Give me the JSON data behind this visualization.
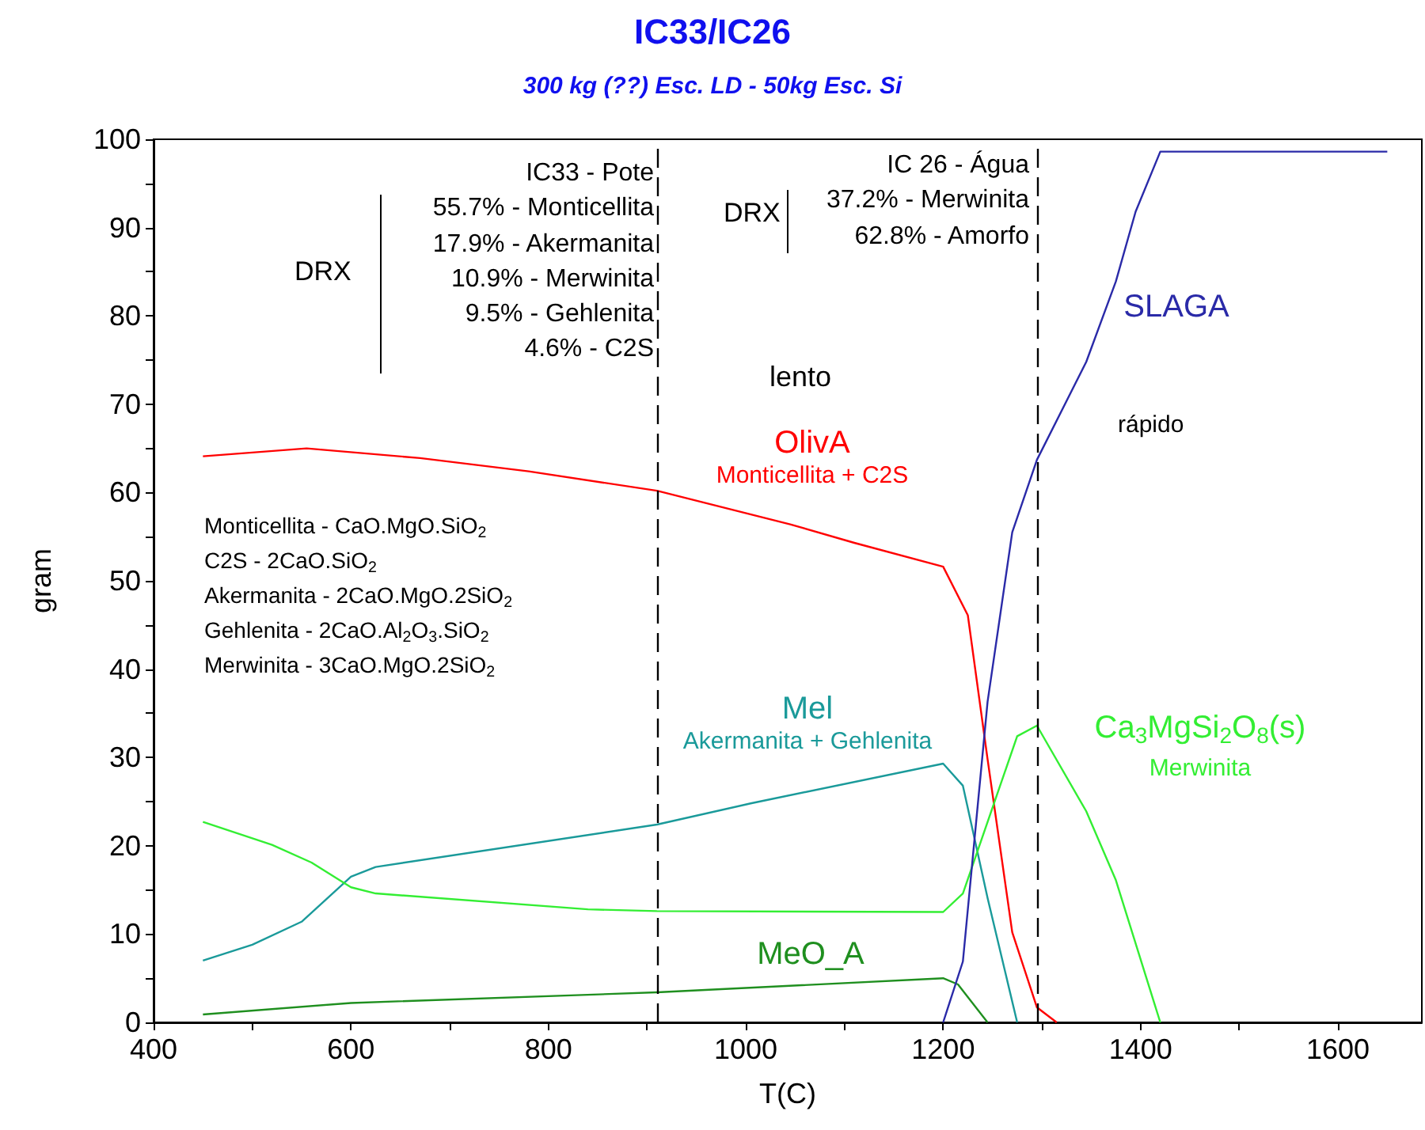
{
  "chart_data": {
    "type": "line",
    "title": "IC33/IC26",
    "subtitle": "300 kg (??) Esc. LD - 50kg Esc. Si",
    "xlabel": "T(C)",
    "ylabel": "gram",
    "xlim": [
      400,
      1685
    ],
    "xticks": [
      400,
      {
        "value": 500,
        "label": null
      },
      600,
      {
        "value": 700,
        "label": null
      },
      800,
      {
        "value": 900,
        "label": null
      },
      1000,
      {
        "value": 1100,
        "label": null
      },
      1200,
      {
        "value": 1300,
        "label": null
      },
      1400,
      {
        "value": 1500,
        "label": null
      },
      1600
    ],
    "ylim": [
      0,
      100
    ],
    "yticks": [
      0,
      {
        "value": 5,
        "label": null
      },
      10,
      {
        "value": 15,
        "label": null
      },
      20,
      {
        "value": 25,
        "label": null
      },
      30,
      {
        "value": 35,
        "label": null
      },
      40,
      {
        "value": 45,
        "label": null
      },
      50,
      {
        "value": 55,
        "label": null
      },
      60,
      {
        "value": 65,
        "label": null
      },
      70,
      {
        "value": 75,
        "label": null
      },
      80,
      {
        "value": 85,
        "label": null
      },
      90,
      {
        "value": 95,
        "label": null
      },
      100
    ],
    "grid": false,
    "legend": false,
    "marker": "none",
    "line_style": "solid",
    "series": [
      {
        "name": "OlivA\nMonticellita + C2S",
        "color": "#ff0000",
        "x": [
          450,
          555,
          670,
          780,
          910,
          1045,
          1110,
          1200,
          1225,
          1245,
          1270,
          1295,
          1315
        ],
        "values": [
          64.1,
          65.0,
          63.9,
          62.4,
          60.2,
          56.4,
          54.3,
          51.6,
          46.1,
          29.8,
          10.2,
          1.7,
          0
        ]
      },
      {
        "name": "Mel\nAkermanita + Gehlenita",
        "color": "#1a9a9a",
        "x": [
          450,
          500,
          550,
          600,
          625,
          910,
          1005,
          1200,
          1220,
          1245,
          1275
        ],
        "values": [
          7.0,
          8.8,
          11.4,
          16.5,
          17.6,
          22.4,
          24.8,
          29.3,
          26.8,
          14.1,
          0
        ]
      },
      {
        "name": "Ca$_{3}$MgSi$_{2}$O$_{8}$(s)\nMerwinita",
        "color": "#33ee33",
        "x": [
          450,
          520,
          560,
          600,
          625,
          840,
          910,
          1200,
          1220,
          1275,
          1295,
          1345,
          1375,
          1420
        ],
        "values": [
          22.7,
          20.1,
          18.1,
          15.3,
          14.6,
          12.8,
          12.6,
          12.5,
          14.6,
          32.4,
          33.6,
          23.9,
          16.1,
          0
        ]
      },
      {
        "name": "MeO_A",
        "color": "#1f8f1f",
        "x": [
          450,
          600,
          910,
          1200,
          1215,
          1245
        ],
        "values": [
          0.9,
          2.2,
          3.4,
          5.0,
          4.3,
          0
        ]
      },
      {
        "name": "SLAGA",
        "color": "#2a2aa8",
        "x": [
          1200,
          1220,
          1245,
          1270,
          1295,
          1345,
          1375,
          1395,
          1420,
          1650
        ],
        "values": [
          0,
          6.9,
          36.3,
          55.5,
          63.7,
          74.8,
          83.9,
          91.8,
          98.6,
          98.6
        ]
      }
    ],
    "ref_lines": [
      {
        "axis": "x",
        "value": 910,
        "label": null,
        "color": "#000000",
        "line_style": "dashed"
      },
      {
        "axis": "x",
        "value": 1295,
        "label": null,
        "color": "#000000",
        "line_style": "dashed"
      }
    ],
    "annotations": [
      "DRX",
      "IC33 - Pote\n55.7% - Monticellita\n17.9% - Akermanita\n10.9% - Merwinita\n9.5% - Gehlenita\n4.6% - C2S",
      "DRX",
      "IC 26 - Água\n37.2% - Merwinita\n62.8% - Amorfo",
      "lento",
      "rápido",
      "Monticellita - CaO.MgO.SiO$_{2}$\nC2S - 2CaO.SiO$_{2}$\nAkermanita - 2CaO.MgO.2SiO$_{2}$\nGehlenita - 2CaO.Al$_{2}$O$_{3}$.SiO$_{2}$\nMerwinita - 3CaO.MgO.2SiO$_{2}$"
    ]
  }
}
